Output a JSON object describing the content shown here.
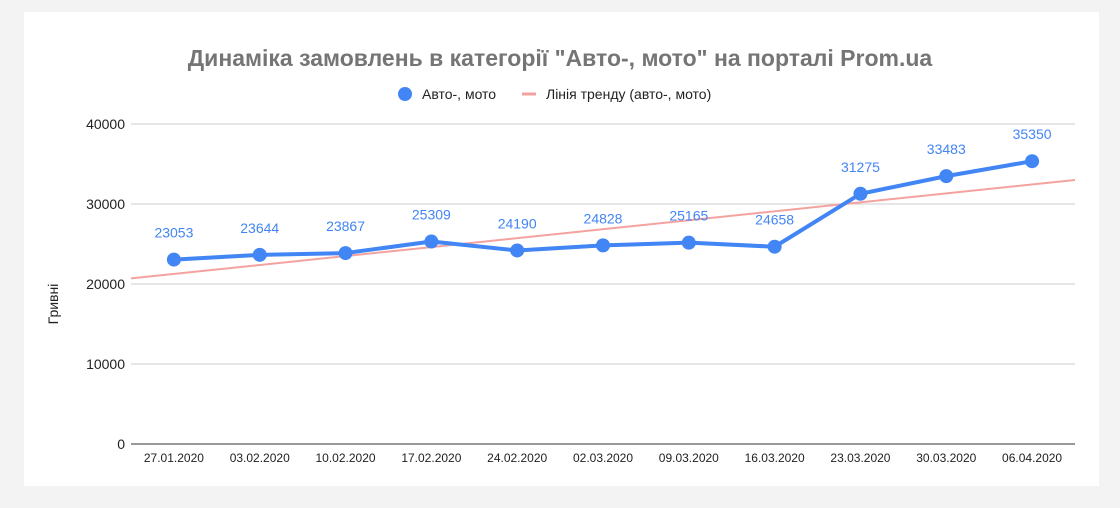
{
  "chart_data": {
    "type": "line",
    "title": "Динаміка замовлень в категорії \"Авто-, мото\" на порталі Prom.ua",
    "ylabel": "Гривні",
    "xlabel": "",
    "ylim": [
      0,
      40000
    ],
    "yticks": [
      0,
      10000,
      20000,
      30000,
      40000
    ],
    "grid": true,
    "legend_position": "top",
    "categories": [
      "27.01.2020",
      "03.02.2020",
      "10.02.2020",
      "17.02.2020",
      "24.02.2020",
      "02.03.2020",
      "09.03.2020",
      "16.03.2020",
      "23.03.2020",
      "30.03.2020",
      "06.04.2020"
    ],
    "series": [
      {
        "name": "Авто-, мото",
        "color": "#4285f4",
        "values": [
          23053,
          23644,
          23867,
          25309,
          24190,
          24828,
          25165,
          24658,
          31275,
          33483,
          35350
        ],
        "data_labels": true
      }
    ],
    "trendline": {
      "name": "Лінія тренду (авто-, мото)",
      "color": "#f4a2a0",
      "start_value": 20700,
      "end_value": 33000
    }
  }
}
